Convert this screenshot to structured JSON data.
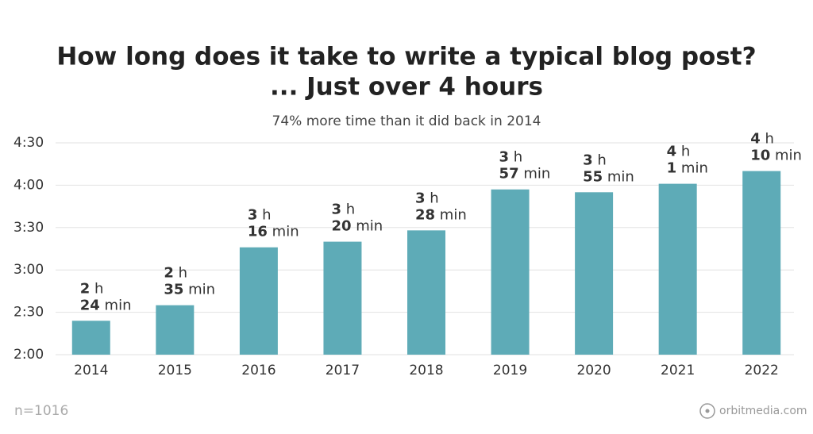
{
  "chart_data": {
    "type": "bar",
    "title": [
      "How long does it take to write a typical blog post?",
      "... Just over 4 hours"
    ],
    "subtitle": "74% more time than it did back in 2014",
    "categories": [
      "2014",
      "2015",
      "2016",
      "2017",
      "2018",
      "2019",
      "2020",
      "2021",
      "2022"
    ],
    "values": [
      144,
      155,
      196,
      200,
      208,
      237,
      235,
      241,
      250
    ],
    "value_labels": [
      [
        "2 h",
        "24 min"
      ],
      [
        "2 h",
        "35 min"
      ],
      [
        "3 h",
        "16 min"
      ],
      [
        "3 h",
        "20 min"
      ],
      [
        "3 h",
        "28 min"
      ],
      [
        "3 h",
        "57 min"
      ],
      [
        "3 h",
        "55 min"
      ],
      [
        "4 h",
        "1 min"
      ],
      [
        "4 h",
        "10 min"
      ]
    ],
    "color": "#5eabb7",
    "ylim": [
      120,
      270
    ],
    "yticks": [
      {
        "value": 120,
        "label": "2:00"
      },
      {
        "value": 150,
        "label": "2:30"
      },
      {
        "value": 180,
        "label": "3:00"
      },
      {
        "value": 210,
        "label": "3:30"
      },
      {
        "value": 240,
        "label": "4:00"
      },
      {
        "value": 270,
        "label": "4:30"
      }
    ],
    "grid": true,
    "footnote": "n=1016",
    "source": "orbitmedia.com"
  }
}
